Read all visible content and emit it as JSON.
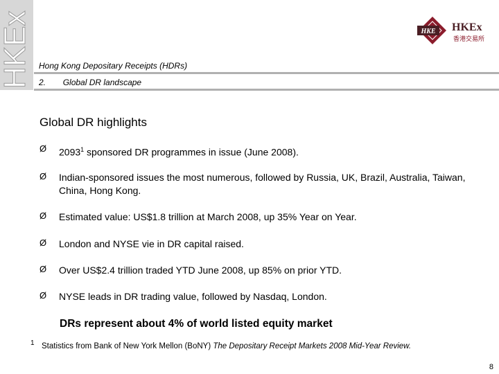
{
  "brand": {
    "vertical_text": "HKEx",
    "logo_badge": "HKE",
    "logo_name": "HKEx",
    "logo_chinese": "香港交易所",
    "accent": "#8b1c2c",
    "logo_dark": "#4a1e24"
  },
  "header": {
    "subtitle": "Hong Kong Depositary Receipts (HDRs)",
    "section_num": "2.",
    "section_title": "Global DR landscape"
  },
  "main": {
    "title": "Global DR highlights",
    "bullet_symbol": "Ø",
    "bullets": [
      {
        "pre": "2093",
        "sup": "1",
        "post": " sponsored DR programmes in issue (June 2008)."
      },
      {
        "text": "Indian-sponsored issues the most numerous, followed by Russia, UK, Brazil, Australia, Taiwan, China, Hong Kong."
      },
      {
        "text": "Estimated value: US$1.8 trillion at March 2008, up 35% Year on Year."
      },
      {
        "text": "London and NYSE vie in DR capital raised."
      },
      {
        "text": "Over US$2.4 trillion traded YTD June 2008, up 85% on prior YTD."
      },
      {
        "text": "NYSE leads in DR trading value, followed by Nasdaq, London."
      }
    ],
    "emphasis": "DRs represent about 4% of world listed equity market"
  },
  "footnote": {
    "mark": "1",
    "pre": "Statistics from Bank of New York Mellon (BoNY) ",
    "italic": "The Depositary Receipt Markets 2008 Mid-Year Review."
  },
  "page_number": "8"
}
